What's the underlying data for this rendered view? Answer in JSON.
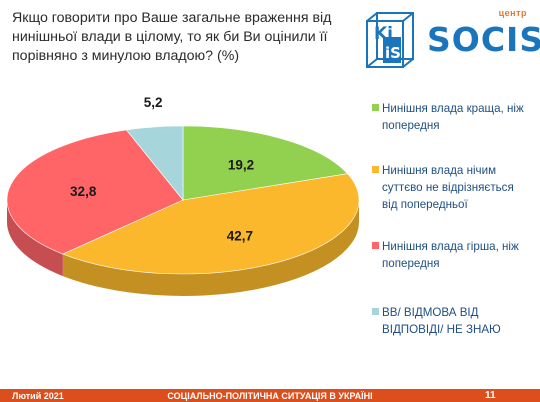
{
  "header": {
    "question": "Якщо говорити про Ваше загальне враження від нинішньої влади в цілому, то як би Ви оцінили її порівняно з минулою владою? (%)"
  },
  "logo": {
    "kiis_text": "Ki iS",
    "centr": "центр",
    "socis": "SOCIS"
  },
  "chart_data": {
    "type": "pie",
    "title": "Якщо говорити про Ваше загальне враження від нинішньої влади в цілому, то як би Ви оцінили її порівняно з минулою владою? (%)",
    "slices": [
      {
        "label": "Нинішня влада краща, ніж попередня",
        "value": 19.2,
        "display": "19,2",
        "color": "#92d050"
      },
      {
        "label": "Нинішня влада нічим суттєво не відрізняється від попередньої",
        "value": 42.7,
        "display": "42,7",
        "color": "#fbb82c"
      },
      {
        "label": "Нинішня влада гірша, ніж попередня",
        "value": 32.8,
        "display": "32,8",
        "color": "#ff6467"
      },
      {
        "label": "ВВ/ ВІДМОВА ВІД ВІДПОВІДІ/ НЕ ЗНАЮ",
        "value": 5.2,
        "display": "5,2",
        "color": "#a6d6dc"
      }
    ],
    "legend_position": "right"
  },
  "footer": {
    "date": "Лютий 2021",
    "center": "СОЦІАЛЬНО-ПОЛІТИЧНА СИТУАЦІЯ В УКРАЇНІ",
    "page": "11"
  }
}
